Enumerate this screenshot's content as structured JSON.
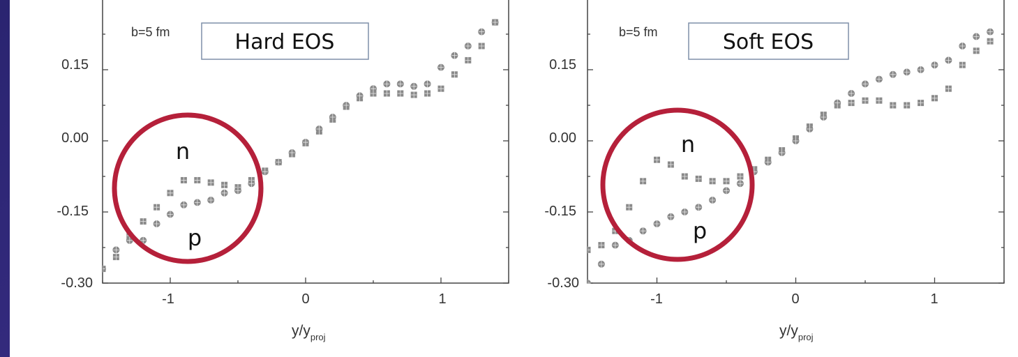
{
  "colors": {
    "slide_bg": "#2e2878",
    "marker": "#8a8a8a",
    "circle_highlight": "#b5203a"
  },
  "chart_data": [
    {
      "type": "scatter",
      "title": "",
      "xlabel": "y/y",
      "xlabel_sub": "proj",
      "ylabel": "",
      "xlim": [
        -1.5,
        1.5
      ],
      "ylim": [
        -0.3,
        0.3
      ],
      "x_ticks": [
        "-1",
        "0",
        "1"
      ],
      "y_ticks": [
        "0.15",
        "0.00",
        "-0.15",
        "-0.30"
      ],
      "grid": false,
      "annotations": {
        "impact": "b=5 fm",
        "box_label": "Hard EOS",
        "label_n": "n",
        "label_p": "p"
      },
      "series": [
        {
          "name": "n",
          "x": [
            -1.5,
            -1.4,
            -1.3,
            -1.2,
            -1.1,
            -1.0,
            -0.9,
            -0.8,
            -0.7,
            -0.6,
            -0.5,
            -0.4,
            -0.3,
            -0.2,
            -0.1,
            0.0,
            0.1,
            0.2,
            0.3,
            0.4,
            0.5,
            0.6,
            0.7,
            0.8,
            0.9,
            1.0,
            1.1,
            1.2,
            1.3,
            1.4
          ],
          "y": [
            -0.27,
            -0.245,
            -0.2,
            -0.17,
            -0.14,
            -0.11,
            -0.083,
            -0.083,
            -0.088,
            -0.093,
            -0.098,
            -0.083,
            -0.063,
            -0.045,
            -0.028,
            -0.005,
            0.02,
            0.045,
            0.072,
            0.09,
            0.1,
            0.1,
            0.1,
            0.097,
            0.1,
            0.11,
            0.14,
            0.17,
            0.2,
            0.25
          ]
        },
        {
          "name": "p",
          "x": [
            -1.5,
            -1.4,
            -1.3,
            -1.2,
            -1.1,
            -1.0,
            -0.9,
            -0.8,
            -0.7,
            -0.6,
            -0.5,
            -0.4,
            -0.3,
            -0.2,
            -0.1,
            0.0,
            0.1,
            0.2,
            0.3,
            0.4,
            0.5,
            0.6,
            0.7,
            0.8,
            0.9,
            1.0,
            1.1,
            1.2,
            1.3,
            1.4
          ],
          "y": [
            -0.27,
            -0.23,
            -0.21,
            -0.21,
            -0.175,
            -0.155,
            -0.135,
            -0.13,
            -0.125,
            -0.11,
            -0.105,
            -0.09,
            -0.065,
            -0.045,
            -0.025,
            -0.003,
            0.025,
            0.05,
            0.075,
            0.095,
            0.11,
            0.12,
            0.12,
            0.115,
            0.12,
            0.155,
            0.18,
            0.2,
            0.23,
            0.25
          ]
        }
      ]
    },
    {
      "type": "scatter",
      "title": "",
      "xlabel": "y/y",
      "xlabel_sub": "proj",
      "ylabel": "",
      "xlim": [
        -1.5,
        1.5
      ],
      "ylim": [
        -0.3,
        0.3
      ],
      "x_ticks": [
        "-1",
        "0",
        "1"
      ],
      "y_ticks": [
        "0.15",
        "0.00",
        "-0.15",
        "-0.30"
      ],
      "grid": false,
      "annotations": {
        "impact": "b=5 fm",
        "box_label": "Soft EOS",
        "label_n": "n",
        "label_p": "p"
      },
      "series": [
        {
          "name": "n",
          "x": [
            -1.5,
            -1.4,
            -1.3,
            -1.2,
            -1.1,
            -1.0,
            -0.9,
            -0.8,
            -0.7,
            -0.6,
            -0.5,
            -0.4,
            -0.3,
            -0.2,
            -0.1,
            0.0,
            0.1,
            0.2,
            0.3,
            0.4,
            0.5,
            0.6,
            0.7,
            0.8,
            0.9,
            1.0,
            1.1,
            1.2,
            1.3,
            1.4
          ],
          "y": [
            -0.23,
            -0.22,
            -0.19,
            -0.14,
            -0.085,
            -0.04,
            -0.05,
            -0.075,
            -0.08,
            -0.085,
            -0.085,
            -0.075,
            -0.06,
            -0.04,
            -0.02,
            0.005,
            0.03,
            0.055,
            0.075,
            0.08,
            0.085,
            0.085,
            0.075,
            0.075,
            0.08,
            0.09,
            0.11,
            0.16,
            0.19,
            0.21
          ]
        },
        {
          "name": "p",
          "x": [
            -1.5,
            -1.4,
            -1.3,
            -1.2,
            -1.1,
            -1.0,
            -0.9,
            -0.8,
            -0.7,
            -0.6,
            -0.5,
            -0.4,
            -0.3,
            -0.2,
            -0.1,
            0.0,
            0.1,
            0.2,
            0.3,
            0.4,
            0.5,
            0.6,
            0.7,
            0.8,
            0.9,
            1.0,
            1.1,
            1.2,
            1.3,
            1.4
          ],
          "y": [
            -0.3,
            -0.26,
            -0.22,
            -0.21,
            -0.19,
            -0.175,
            -0.16,
            -0.15,
            -0.14,
            -0.125,
            -0.105,
            -0.09,
            -0.065,
            -0.045,
            -0.025,
            0.0,
            0.025,
            0.05,
            0.08,
            0.1,
            0.12,
            0.13,
            0.14,
            0.145,
            0.15,
            0.16,
            0.17,
            0.2,
            0.22,
            0.23
          ]
        }
      ]
    }
  ]
}
